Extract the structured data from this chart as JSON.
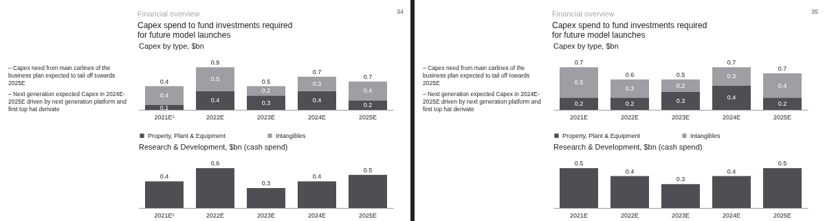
{
  "chart_data": [
    {
      "type": "bar",
      "title": "Capex by type, $bn",
      "stacked": true,
      "data_labels": true,
      "legend": "bottom",
      "tick_labels": "x",
      "annotations": [
        "Financial overview",
        "Capex spend to fund investments required for future model launches",
        "34",
        "– Capex need from main carlines of the business plan expected to tail off towards 2025E",
        "– Next generation expected Capex in 2024E-2025E driven by next generation platform and first top hat derivate"
      ],
      "categories": [
        "2021E¹",
        "2022E",
        "2023E",
        "2024E",
        "2025E"
      ],
      "series": [
        {
          "name": "Property, Plant & Equipment",
          "color": "#4d4f53",
          "values": [
            0.1,
            0.4,
            0.3,
            0.4,
            0.2
          ]
        },
        {
          "name": "Intangibles",
          "color": "#9d9fa2",
          "values": [
            0.4,
            0.5,
            0.2,
            0.3,
            0.4
          ]
        }
      ],
      "totals": [
        "0.4",
        "0.9",
        "0.5",
        "0.7",
        "0.7"
      ]
    },
    {
      "type": "bar",
      "title": "Research & Development, $bn (cash spend)",
      "data_labels": true,
      "tick_labels": "x",
      "categories": [
        "2021E¹",
        "2022E",
        "2023E",
        "2024E",
        "2025E"
      ],
      "series": [
        {
          "color": "#4d4f53",
          "values": [
            0.4,
            0.6,
            0.3,
            0.4,
            0.5
          ]
        }
      ]
    },
    {
      "type": "bar",
      "title": "Capex by type, $bn",
      "stacked": true,
      "data_labels": true,
      "legend": "bottom",
      "tick_labels": "x",
      "annotations": [
        "Financial overview",
        "Capex spend to fund investments required for future model launches",
        "35",
        "– Capex need from main carlines of the business plan expected to tail off towards 2025E",
        "– Next generation expected Capex in 2024E-2025E driven by next generation platform and first top hat derivate"
      ],
      "categories": [
        "2021E",
        "2022E",
        "2023E",
        "2024E",
        "2025E"
      ],
      "series": [
        {
          "name": "Property, Plant & Equipment",
          "color": "#4d4f53",
          "values": [
            0.2,
            0.2,
            0.3,
            0.4,
            0.2
          ]
        },
        {
          "name": "Intangibles",
          "color": "#9d9fa2",
          "values": [
            0.5,
            0.3,
            0.2,
            0.3,
            0.4
          ]
        }
      ],
      "totals": [
        "0.7",
        "0.6",
        "0.5",
        "0.7",
        "0.7"
      ]
    },
    {
      "type": "bar",
      "title": "Research & Development, $bn (cash spend)",
      "data_labels": true,
      "tick_labels": "x",
      "categories": [
        "2021E",
        "2022E",
        "2023E",
        "2024E",
        "2025E"
      ],
      "series": [
        {
          "color": "#4d4f53",
          "values": [
            0.5,
            0.4,
            0.3,
            0.4,
            0.5
          ]
        }
      ]
    }
  ]
}
